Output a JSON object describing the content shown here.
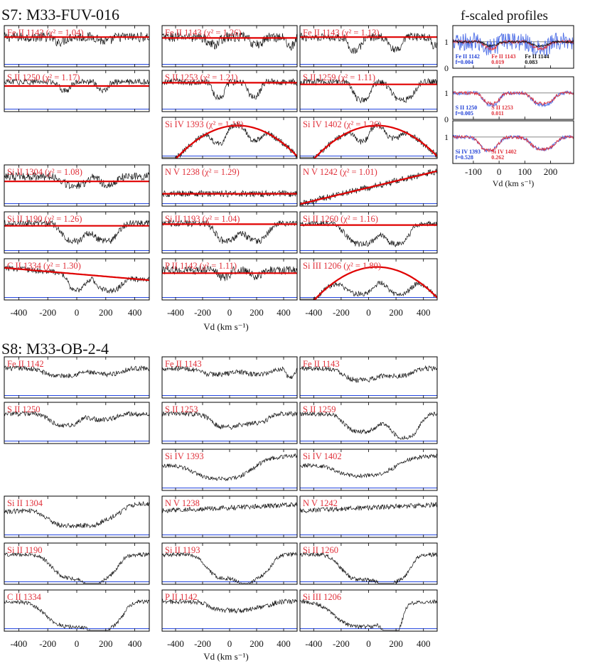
{
  "sections": [
    {
      "title": "S7: M33-FUV-016",
      "xlabel": "Vd (km s⁻¹)",
      "xticks": [
        -400,
        -200,
        0,
        200,
        400
      ],
      "xlim": [
        -500,
        500
      ],
      "chart_data": {
        "type": "line",
        "panels": [
          {
            "label": "Fe II 1142 (χ² = 1.04)",
            "col": 0,
            "row": 0,
            "absorption": [
              [
                -120,
                40,
                0.15
              ],
              [
                200,
                40,
                0.15
              ]
            ],
            "noise": 0.12,
            "fit": {
              "type": "flat",
              "level": 0.72
            }
          },
          {
            "label": "Fe II 1143 (χ² = 1.26)",
            "col": 1,
            "row": 0,
            "absorption": [
              [
                -120,
                45,
                0.25
              ],
              [
                200,
                45,
                0.25
              ],
              [
                450,
                30,
                0.3
              ]
            ],
            "noise": 0.12,
            "fit": {
              "type": "flat",
              "level": 0.7
            }
          },
          {
            "label": "Fe II 1143 (χ² = 1.13)",
            "col": 2,
            "row": 0,
            "absorption": [
              [
                -100,
                45,
                0.45
              ],
              [
                200,
                45,
                0.45
              ],
              [
                480,
                20,
                0.3
              ]
            ],
            "noise": 0.1,
            "fit": {
              "type": "flat",
              "level": 0.72
            }
          },
          {
            "label": "S II 1250 (χ² = 1.17)",
            "col": 0,
            "row": 1,
            "absorption": [
              [
                -80,
                35,
                0.3
              ],
              [
                180,
                35,
                0.3
              ]
            ],
            "noise": 0.07,
            "fit": {
              "type": "flat",
              "level": 0.62
            }
          },
          {
            "label": "S II 1253 (χ² = 1.21)",
            "col": 1,
            "row": 1,
            "absorption": [
              [
                -80,
                45,
                0.5
              ],
              [
                180,
                45,
                0.5
              ]
            ],
            "noise": 0.08,
            "fit": {
              "type": "flat",
              "level": 0.7
            }
          },
          {
            "label": "S II 1259 (χ² = 1.11)",
            "col": 2,
            "row": 1,
            "absorption": [
              [
                -50,
                60,
                0.6
              ],
              [
                250,
                80,
                0.6
              ]
            ],
            "noise": 0.08,
            "fit": {
              "type": "flat",
              "level": 0.66
            }
          },
          {
            "label": "Si IV 1393 (χ² = 1.18)",
            "col": 1,
            "row": 2,
            "absorption": [
              [
                -80,
                50,
                0.5
              ],
              [
                180,
                50,
                0.4
              ]
            ],
            "noise": 0.07,
            "fit": {
              "type": "rise",
              "level": 0.75
            }
          },
          {
            "label": "Si IV 1402 (χ² = 1.26)",
            "col": 2,
            "row": 2,
            "absorption": [
              [
                -50,
                50,
                0.45
              ],
              [
                180,
                50,
                0.35
              ]
            ],
            "noise": 0.07,
            "fit": {
              "type": "rise",
              "level": 0.78
            }
          },
          {
            "label": "Si II 1304 (χ² = 1.08)",
            "col": 0,
            "row": 3,
            "absorption": [
              [
                -20,
                80,
                0.3
              ],
              [
                220,
                60,
                0.25
              ]
            ],
            "noise": 0.1,
            "fit": {
              "type": "flat",
              "level": 0.6
            }
          },
          {
            "label": "N V 1238 (χ² = 1.29)",
            "col": 1,
            "row": 3,
            "absorption": [],
            "noise": 0.08,
            "fit": {
              "type": "flat",
              "level": 0.3
            }
          },
          {
            "label": "N V 1242 (χ² = 1.01)",
            "col": 2,
            "row": 3,
            "absorption": [],
            "noise": 0.08,
            "fit": {
              "type": "slope",
              "level": 0.35
            }
          },
          {
            "label": "Si II 1190 (χ² = 1.26)",
            "col": 0,
            "row": 4,
            "absorption": [
              [
                -20,
                80,
                0.6
              ],
              [
                200,
                80,
                0.6
              ]
            ],
            "noise": 0.08,
            "fit": {
              "type": "flat",
              "level": 0.66
            }
          },
          {
            "label": "Si II 1193 (χ² = 1.04)",
            "col": 1,
            "row": 4,
            "absorption": [
              [
                -20,
                80,
                0.6
              ],
              [
                200,
                80,
                0.6
              ]
            ],
            "noise": 0.08,
            "fit": {
              "type": "flat",
              "level": 0.7
            }
          },
          {
            "label": "Si II 1260 (χ² = 1.16)",
            "col": 2,
            "row": 4,
            "absorption": [
              [
                -50,
                110,
                0.7
              ],
              [
                210,
                80,
                0.7
              ]
            ],
            "noise": 0.07,
            "fit": {
              "type": "flat",
              "level": 0.68
            }
          },
          {
            "label": "C II 1334 (χ² = 1.30)",
            "col": 0,
            "row": 5,
            "absorption": [
              [
                0,
                60,
                0.6
              ],
              [
                220,
                80,
                0.6
              ]
            ],
            "noise": 0.07,
            "fit": {
              "type": "decline",
              "level": 0.7
            }
          },
          {
            "label": "P II 1142 (χ² = 1.11)",
            "col": 1,
            "row": 5,
            "absorption": [
              [
                -40,
                40,
                0.25
              ],
              [
                200,
                40,
                0.2
              ]
            ],
            "noise": 0.1,
            "fit": {
              "type": "flat",
              "level": 0.65
            }
          },
          {
            "label": "Si III 1206 (χ² = 1.80)",
            "col": 2,
            "row": 5,
            "absorption": [
              [
                -60,
                120,
                0.8
              ],
              [
                220,
                90,
                0.8
              ]
            ],
            "noise": 0.06,
            "fit": {
              "type": "rise",
              "level": 0.8
            }
          }
        ]
      }
    },
    {
      "title": "S8: M33-OB-2-4",
      "xlabel": "Vd (km s⁻¹)",
      "xticks": [
        -400,
        -200,
        0,
        200,
        400
      ],
      "xlim": [
        -500,
        500
      ],
      "chart_data": {
        "type": "line",
        "panels": [
          {
            "label": "Fe II 1142",
            "col": 0,
            "row": 0,
            "absorption": [
              [
                -100,
                120,
                0.25
              ],
              [
                200,
                100,
                0.2
              ]
            ],
            "noise": 0.06
          },
          {
            "label": "Fe II 1143",
            "col": 1,
            "row": 0,
            "absorption": [
              [
                -100,
                120,
                0.2
              ],
              [
                200,
                100,
                0.2
              ],
              [
                450,
                30,
                0.3
              ]
            ],
            "noise": 0.06
          },
          {
            "label": "Fe II 1143",
            "col": 2,
            "row": 0,
            "absorption": [
              [
                -50,
                120,
                0.4
              ],
              [
                220,
                100,
                0.25
              ]
            ],
            "noise": 0.06
          },
          {
            "label": "S II 1250",
            "col": 0,
            "row": 1,
            "absorption": [
              [
                -80,
                100,
                0.4
              ],
              [
                180,
                80,
                0.2
              ]
            ],
            "noise": 0.06
          },
          {
            "label": "S II 1253",
            "col": 1,
            "row": 1,
            "absorption": [
              [
                -20,
                110,
                0.45
              ],
              [
                200,
                80,
                0.3
              ]
            ],
            "noise": 0.06
          },
          {
            "label": "S II 1259",
            "col": 2,
            "row": 1,
            "absorption": [
              [
                -50,
                120,
                0.6
              ],
              [
                260,
                100,
                0.8
              ]
            ],
            "noise": 0.05
          },
          {
            "label": "Si IV 1393",
            "col": 1,
            "row": 2,
            "absorption": [
              [
                -50,
                200,
                0.6
              ]
            ],
            "noise": 0.05,
            "trend": 0.25
          },
          {
            "label": "Si IV 1402",
            "col": 2,
            "row": 2,
            "absorption": [
              [
                -30,
                200,
                0.5
              ]
            ],
            "noise": 0.05,
            "trend": 0.25
          },
          {
            "label": "Si II 1304",
            "col": 0,
            "row": 3,
            "absorption": [
              [
                -40,
                150,
                0.6
              ],
              [
                200,
                100,
                0.35
              ]
            ],
            "noise": 0.06,
            "trend": 0.2
          },
          {
            "label": "N V 1238",
            "col": 1,
            "row": 3,
            "absorption": [],
            "noise": 0.06,
            "trend": 0.15
          },
          {
            "label": "N V 1242",
            "col": 2,
            "row": 3,
            "absorption": [],
            "noise": 0.06,
            "trend": 0.15
          },
          {
            "label": "Si II 1190",
            "col": 0,
            "row": 4,
            "absorption": [
              [
                -20,
                140,
                0.8
              ],
              [
                180,
                100,
                0.7
              ]
            ],
            "noise": 0.05
          },
          {
            "label": "Si II 1193",
            "col": 1,
            "row": 4,
            "absorption": [
              [
                -20,
                140,
                0.8
              ],
              [
                200,
                100,
                0.7
              ]
            ],
            "noise": 0.05
          },
          {
            "label": "Si II 1260",
            "col": 2,
            "row": 4,
            "absorption": [
              [
                -40,
                150,
                0.85
              ],
              [
                200,
                100,
                0.8
              ]
            ],
            "noise": 0.05
          },
          {
            "label": "C II 1334",
            "col": 0,
            "row": 5,
            "absorption": [
              [
                -20,
                180,
                0.85
              ],
              [
                220,
                100,
                0.7
              ]
            ],
            "noise": 0.05
          },
          {
            "label": "P II 1142",
            "col": 1,
            "row": 5,
            "absorption": [
              [
                -20,
                120,
                0.3
              ],
              [
                200,
                100,
                0.2
              ]
            ],
            "noise": 0.06
          },
          {
            "label": "Si III 1206",
            "col": 2,
            "row": 5,
            "absorption": [
              [
                -40,
                200,
                0.85
              ],
              [
                180,
                60,
                0.8
              ]
            ],
            "noise": 0.05
          }
        ]
      }
    }
  ],
  "inset": {
    "title": "f-scaled profiles",
    "xlabel": "Vd (km s⁻¹)",
    "xticks": [
      -100,
      0,
      100,
      200
    ],
    "xlim": [
      -180,
      290
    ],
    "chart_data": {
      "type": "line",
      "panels": [
        {
          "yticks": [
            "1",
            "0"
          ],
          "annotations": [
            {
              "lines": [
                "Fe II 1142",
                "f=0.004"
              ],
              "color": "#1f3fd6",
              "x": -170
            },
            {
              "lines": [
                "Fe II 1143",
                "0.019"
              ],
              "color": "#e0303a",
              "x": -30
            },
            {
              "lines": [
                "Fe II 1144",
                "0.083"
              ],
              "color": "#111111",
              "x": 100
            }
          ],
          "series": [
            {
              "color": "#4f6fe6",
              "noise": 0.35,
              "absorption": [
                [
                  -30,
                  25,
                  0.2
                ],
                [
                  160,
                  30,
                  0.3
                ]
              ]
            },
            {
              "color": "#e0303a",
              "noise": 0.06,
              "absorption": [
                [
                  -30,
                  25,
                  0.25
                ],
                [
                  160,
                  30,
                  0.25
                ]
              ]
            },
            {
              "color": "#111111",
              "noise": 0.04,
              "absorption": [
                [
                  -30,
                  25,
                  0.15
                ],
                [
                  160,
                  30,
                  0.15
                ]
              ]
            }
          ]
        },
        {
          "yticks": [
            "1",
            "0"
          ],
          "annotations": [
            {
              "lines": [
                "S II 1250",
                "f=0.005"
              ],
              "color": "#1f3fd6",
              "x": -170
            },
            {
              "lines": [
                "S II 1253",
                "0.011"
              ],
              "color": "#e0303a",
              "x": -30
            }
          ],
          "series": [
            {
              "color": "#4f6fe6",
              "noise": 0.07,
              "absorption": [
                [
                  -30,
                  30,
                  0.45
                ],
                [
                  170,
                  40,
                  0.45
                ]
              ]
            },
            {
              "color": "#e0303a",
              "noise": 0.06,
              "absorption": [
                [
                  -30,
                  30,
                  0.4
                ],
                [
                  170,
                  40,
                  0.4
                ]
              ]
            }
          ]
        },
        {
          "yticks": [
            "1"
          ],
          "annotations": [
            {
              "lines": [
                "Si IV 1393",
                "f=0.528"
              ],
              "color": "#1f3fd6",
              "x": -170
            },
            {
              "lines": [
                "Si IV 1402",
                "0.262"
              ],
              "color": "#e0303a",
              "x": -30
            }
          ],
          "series": [
            {
              "color": "#4f6fe6",
              "noise": 0.07,
              "absorption": [
                [
                  -40,
                  35,
                  0.5
                ],
                [
                  170,
                  45,
                  0.45
                ]
              ]
            },
            {
              "color": "#e0303a",
              "noise": 0.06,
              "absorption": [
                [
                  -40,
                  35,
                  0.5
                ],
                [
                  170,
                  45,
                  0.45
                ]
              ]
            }
          ]
        }
      ]
    }
  },
  "colors": {
    "label": "#e0303a",
    "fit": "#e00000",
    "error": "#2244dd",
    "data": "#111111",
    "axis": "#000000"
  }
}
